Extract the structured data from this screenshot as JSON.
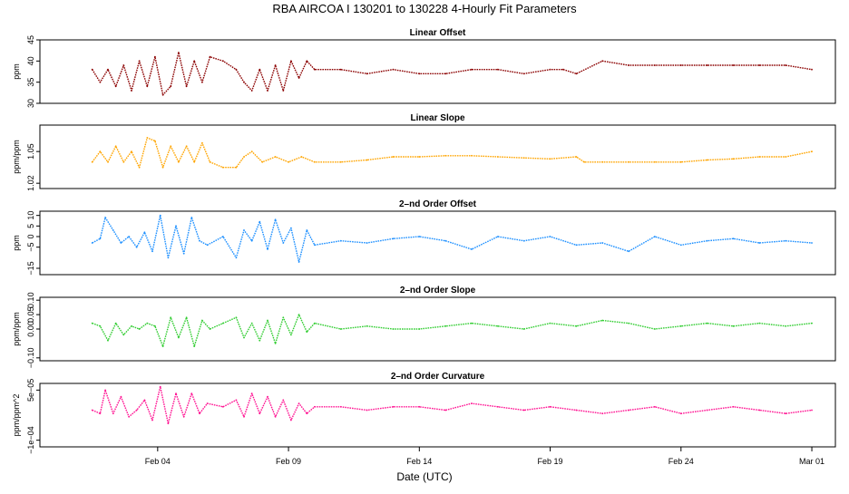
{
  "figure": {
    "title": "RBA   AIRCOA I   130201 to 130228   4-Hourly Fit Parameters",
    "xlabel": "Date (UTC)",
    "xticks": [
      {
        "day": 4,
        "label": "Feb 04"
      },
      {
        "day": 9,
        "label": "Feb 09"
      },
      {
        "day": 14,
        "label": "Feb 14"
      },
      {
        "day": 19,
        "label": "Feb 19"
      },
      {
        "day": 24,
        "label": "Feb 24"
      },
      {
        "day": 29,
        "label": "Mar 01"
      }
    ]
  },
  "chart_data": [
    {
      "type": "line",
      "title": "Linear Offset",
      "ylabel": "ppm",
      "color": "#8b0000",
      "ylim": [
        30,
        45
      ],
      "yticks": [
        {
          "v": 30,
          "t": "30"
        },
        {
          "v": 35,
          "t": "35"
        },
        {
          "v": 40,
          "t": "40"
        },
        {
          "v": 45,
          "t": "45"
        }
      ],
      "x_days": [
        1.5,
        1.8,
        2.1,
        2.4,
        2.7,
        3.0,
        3.3,
        3.6,
        3.9,
        4.2,
        4.5,
        4.8,
        5.1,
        5.4,
        5.7,
        6.0,
        6.5,
        7.0,
        7.3,
        7.6,
        7.9,
        8.2,
        8.5,
        8.8,
        9.1,
        9.4,
        9.7,
        10,
        11,
        12,
        13,
        14,
        15,
        16,
        17,
        18,
        19,
        19.5,
        20,
        21,
        22,
        23,
        24,
        25,
        26,
        27,
        28,
        29
      ],
      "y": [
        38,
        35,
        38,
        34,
        39,
        33,
        40,
        34,
        41,
        32,
        34,
        42,
        34,
        40,
        35,
        41,
        40,
        38,
        35,
        33,
        38,
        33,
        39,
        33,
        40,
        36,
        40,
        38,
        38,
        37,
        38,
        37,
        37,
        38,
        38,
        37,
        38,
        38,
        37,
        40,
        39,
        39,
        39,
        39,
        39,
        39,
        39,
        38
      ]
    },
    {
      "type": "line",
      "title": "Linear Slope",
      "ylabel": "ppm/ppm",
      "color": "#ffa500",
      "ylim": [
        1.015,
        1.075
      ],
      "yticks": [
        {
          "v": 1.02,
          "t": "1.02"
        },
        {
          "v": 1.05,
          "t": "1.05"
        }
      ],
      "x_days": [
        1.5,
        1.8,
        2.1,
        2.4,
        2.7,
        3.0,
        3.3,
        3.6,
        3.9,
        4.2,
        4.5,
        4.8,
        5.1,
        5.4,
        5.7,
        6.0,
        6.5,
        7.0,
        7.3,
        7.6,
        8.0,
        8.5,
        9.0,
        9.5,
        10,
        11,
        12,
        13,
        14,
        15,
        16,
        17,
        18,
        19,
        20,
        20.3,
        21,
        22,
        23,
        24,
        25,
        26,
        27,
        28,
        29
      ],
      "y": [
        1.04,
        1.05,
        1.04,
        1.055,
        1.04,
        1.05,
        1.035,
        1.063,
        1.06,
        1.035,
        1.055,
        1.04,
        1.055,
        1.04,
        1.058,
        1.04,
        1.035,
        1.035,
        1.045,
        1.05,
        1.04,
        1.045,
        1.04,
        1.045,
        1.04,
        1.04,
        1.042,
        1.045,
        1.045,
        1.046,
        1.046,
        1.045,
        1.044,
        1.043,
        1.045,
        1.04,
        1.04,
        1.04,
        1.04,
        1.04,
        1.042,
        1.043,
        1.045,
        1.045,
        1.05
      ]
    },
    {
      "type": "line",
      "title": "2–nd Order Offset",
      "ylabel": "ppm",
      "color": "#1e90ff",
      "ylim": [
        -18,
        12
      ],
      "yticks": [
        {
          "v": -15,
          "t": "−15"
        },
        {
          "v": -5,
          "t": "−5"
        },
        {
          "v": 0,
          "t": "0"
        },
        {
          "v": 5,
          "t": "5"
        },
        {
          "v": 10,
          "t": "10"
        }
      ],
      "x_days": [
        1.5,
        1.8,
        2.0,
        2.3,
        2.6,
        2.9,
        3.2,
        3.5,
        3.8,
        4.1,
        4.4,
        4.7,
        5.0,
        5.3,
        5.6,
        5.9,
        6.5,
        7.0,
        7.3,
        7.6,
        7.9,
        8.2,
        8.5,
        8.8,
        9.1,
        9.4,
        9.7,
        10,
        11,
        12,
        13,
        14,
        15,
        16,
        17,
        18,
        19,
        20,
        21,
        22,
        23,
        24,
        25,
        26,
        27,
        28,
        29
      ],
      "y": [
        -3,
        -1,
        9,
        3,
        -3,
        0,
        -5,
        2,
        -7,
        10,
        -10,
        5,
        -8,
        9,
        -2,
        -4,
        0,
        -10,
        3,
        -2,
        7,
        -6,
        8,
        -3,
        4,
        -12,
        3,
        -4,
        -2,
        -3,
        -1,
        0,
        -2,
        -6,
        0,
        -2,
        0,
        -4,
        -3,
        -7,
        0,
        -4,
        -2,
        -1,
        -3,
        -2,
        -3
      ]
    },
    {
      "type": "line",
      "title": "2–nd Order Slope",
      "ylabel": "ppm/ppm",
      "color": "#32cd32",
      "ylim": [
        -0.11,
        0.11
      ],
      "yticks": [
        {
          "v": -0.1,
          "t": "−0.10"
        },
        {
          "v": 0,
          "t": "0.00"
        },
        {
          "v": 0.05,
          "t": "0.05"
        },
        {
          "v": 0.1,
          "t": "0.10"
        }
      ],
      "x_days": [
        1.5,
        1.8,
        2.1,
        2.4,
        2.7,
        3.0,
        3.3,
        3.6,
        3.9,
        4.2,
        4.5,
        4.8,
        5.1,
        5.4,
        5.7,
        6.0,
        6.5,
        7.0,
        7.3,
        7.6,
        7.9,
        8.2,
        8.5,
        8.8,
        9.1,
        9.4,
        9.7,
        10,
        11,
        12,
        13,
        14,
        15,
        16,
        17,
        18,
        19,
        20,
        21,
        22,
        23,
        24,
        25,
        26,
        27,
        28,
        29
      ],
      "y": [
        0.02,
        0.01,
        -0.04,
        0.02,
        -0.02,
        0.01,
        0.0,
        0.02,
        0.01,
        -0.06,
        0.04,
        -0.03,
        0.04,
        -0.06,
        0.03,
        0.0,
        0.02,
        0.04,
        -0.03,
        0.02,
        -0.04,
        0.03,
        -0.05,
        0.04,
        -0.02,
        0.05,
        -0.01,
        0.02,
        0.0,
        0.01,
        0.0,
        0.0,
        0.01,
        0.02,
        0.01,
        0.0,
        0.02,
        0.01,
        0.03,
        0.02,
        0.0,
        0.01,
        0.02,
        0.01,
        0.02,
        0.01,
        0.02
      ]
    },
    {
      "type": "line",
      "title": "2–nd Order Curvature",
      "ylabel": "ppm/ppm^2",
      "color": "#ff1493",
      "ylim": [
        -0.00012,
        7e-05
      ],
      "yticks": [
        {
          "v": -0.0001,
          "t": "−1e−04"
        },
        {
          "v": 5e-05,
          "t": "5e−05"
        }
      ],
      "x_days": [
        1.5,
        1.8,
        2.0,
        2.3,
        2.6,
        2.9,
        3.2,
        3.5,
        3.8,
        4.1,
        4.4,
        4.7,
        5.0,
        5.3,
        5.6,
        5.9,
        6.5,
        7.0,
        7.3,
        7.6,
        7.9,
        8.2,
        8.5,
        8.8,
        9.1,
        9.4,
        9.7,
        10,
        11,
        12,
        13,
        14,
        15,
        16,
        17,
        18,
        19,
        20,
        21,
        22,
        23,
        24,
        25,
        26,
        27,
        28,
        29
      ],
      "y": [
        -1e-05,
        -2e-05,
        5e-05,
        -2e-05,
        3e-05,
        -3e-05,
        -1e-05,
        2e-05,
        -4e-05,
        6e-05,
        -5e-05,
        4e-05,
        -3e-05,
        4e-05,
        -2e-05,
        1e-05,
        0.0,
        2e-05,
        -3e-05,
        4e-05,
        -2e-05,
        3e-05,
        -3e-05,
        2e-05,
        -4e-05,
        1e-05,
        -2e-05,
        0.0,
        0.0,
        -1e-05,
        0.0,
        0.0,
        -1e-05,
        1e-05,
        0.0,
        -1e-05,
        0.0,
        -1e-05,
        -2e-05,
        -1e-05,
        0.0,
        -2e-05,
        -1e-05,
        0.0,
        -1e-05,
        -2e-05,
        -1e-05
      ]
    }
  ]
}
